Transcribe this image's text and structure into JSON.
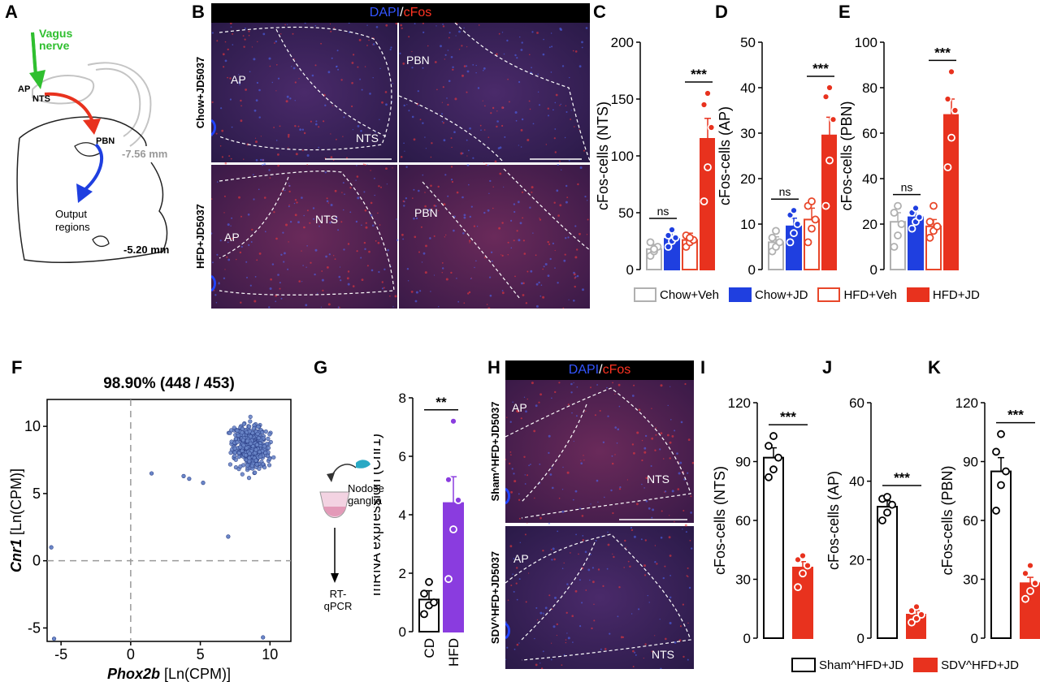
{
  "panel_labels": [
    "A",
    "B",
    "C",
    "D",
    "E",
    "F",
    "G",
    "H",
    "I",
    "J",
    "K"
  ],
  "panel_a": {
    "vagus_label": "Vagus nerve",
    "ap": "AP",
    "nts": "NTS",
    "pbn": "PBN",
    "mm1": "-7.56 mm",
    "output": "Output regions",
    "mm2": "-5.20 mm"
  },
  "panel_b": {
    "title_a": "DAPI",
    "title_sep": "/",
    "title_b": "cFos",
    "row1": "Chow+JD5037",
    "row2": "HFD+JD5037",
    "r1c1_ap": "AP",
    "r1c1_nts": "NTS",
    "r1c2_pbn": "PBN",
    "r2c1_ap": "AP",
    "r2c1_nts": "NTS",
    "r2c2_pbn": "PBN"
  },
  "panel_h": {
    "title_a": "DAPI",
    "title_sep": "/",
    "title_b": "cFos",
    "row1": "Sham^HFD+JD5037",
    "row2": "SDV^HFD+JD5037",
    "r1_ap": "AP",
    "r1_nts": "NTS",
    "r2_ap": "AP",
    "r2_nts": "NTS"
  },
  "panel_g": {
    "tissue": "Nodose ganglia",
    "method": "RT-qPCR"
  },
  "legend1": [
    {
      "label": "Chow+Veh",
      "fill": "#ffffff",
      "stroke": "#b0b0b0"
    },
    {
      "label": "Chow+JD",
      "fill": "#1f3fe0",
      "stroke": "#1f3fe0"
    },
    {
      "label": "HFD+Veh",
      "fill": "#ffffff",
      "stroke": "#e8472a"
    },
    {
      "label": "HFD+JD",
      "fill": "#e8321e",
      "stroke": "#e8321e"
    }
  ],
  "legend2": [
    {
      "label": "Sham^HFD+JD",
      "fill": "#ffffff",
      "stroke": "#000000"
    },
    {
      "label": "SDV^HFD+JD",
      "fill": "#e8321e",
      "stroke": "#e8321e"
    }
  ],
  "chart_data": [
    {
      "id": "C",
      "type": "bar",
      "ylabel": "cFos-cells (NTS)",
      "ylim": [
        0,
        200
      ],
      "yticks": [
        0,
        50,
        100,
        150,
        200
      ],
      "categories": [
        "Chow+Veh",
        "Chow+JD",
        "HFD+Veh",
        "HFD+JD"
      ],
      "values": [
        18,
        27,
        26,
        115
      ],
      "sem": [
        4,
        6,
        6,
        18
      ],
      "points": [
        [
          12,
          16,
          20,
          24,
          18
        ],
        [
          20,
          25,
          28,
          30,
          35
        ],
        [
          20,
          24,
          26,
          30,
          28
        ],
        [
          60,
          90,
          125,
          145,
          155
        ]
      ],
      "annotations": [
        {
          "text": "ns",
          "from": 0,
          "to": 1
        },
        {
          "text": "***",
          "from": 2,
          "to": 3
        }
      ]
    },
    {
      "id": "D",
      "type": "bar",
      "ylabel": "cFos-cells (AP)",
      "ylim": [
        0,
        50
      ],
      "yticks": [
        0,
        10,
        20,
        30,
        40,
        50
      ],
      "categories": [
        "Chow+Veh",
        "Chow+JD",
        "HFD+Veh",
        "HFD+JD"
      ],
      "values": [
        6,
        9.5,
        11,
        29.5
      ],
      "sem": [
        1.2,
        1.8,
        2.5,
        4
      ],
      "points": [
        [
          4,
          5,
          6,
          7,
          8.5
        ],
        [
          6,
          8,
          10,
          12,
          13
        ],
        [
          6,
          9,
          11,
          14,
          15
        ],
        [
          14,
          24,
          33,
          38,
          40
        ]
      ],
      "annotations": [
        {
          "text": "ns",
          "from": 0,
          "to": 1
        },
        {
          "text": "***",
          "from": 2,
          "to": 3
        }
      ]
    },
    {
      "id": "E",
      "type": "bar",
      "ylabel": "cFos-cells (PBN)",
      "ylim": [
        0,
        100
      ],
      "yticks": [
        0,
        20,
        40,
        60,
        80,
        100
      ],
      "categories": [
        "Chow+Veh",
        "Chow+JD",
        "HFD+Veh",
        "HFD+JD"
      ],
      "values": [
        21,
        23,
        19,
        68
      ],
      "sem": [
        4,
        3,
        3,
        7
      ],
      "points": [
        [
          10,
          15,
          20,
          25,
          28
        ],
        [
          18,
          21,
          23,
          25,
          27
        ],
        [
          14,
          17,
          19,
          21,
          28
        ],
        [
          45,
          58,
          70,
          75,
          87
        ]
      ],
      "annotations": [
        {
          "text": "ns",
          "from": 0,
          "to": 1
        },
        {
          "text": "***",
          "from": 2,
          "to": 3
        }
      ]
    },
    {
      "id": "F",
      "type": "scatter",
      "title": "98.90% (448 / 453)",
      "xlabel": "Phox2b [Ln(CPM)]",
      "ylabel": "Cnr1 [Ln(CPM)]",
      "xlim": [
        -6,
        11.5
      ],
      "ylim": [
        -6,
        12
      ],
      "xticks": [
        -5,
        0,
        5,
        10
      ],
      "yticks": [
        -5,
        0,
        5,
        10
      ],
      "outliers": [
        [
          -5.7,
          1
        ],
        [
          -5.5,
          -5.8
        ],
        [
          1.5,
          6.5
        ],
        [
          7,
          1.8
        ],
        [
          9.5,
          -5.7
        ],
        [
          4.2,
          6.1
        ],
        [
          5.2,
          5.8
        ],
        [
          3.8,
          6.3
        ]
      ],
      "cluster": {
        "n": 440,
        "center": [
          8.6,
          8.5
        ],
        "spread": [
          0.9,
          1.2
        ]
      }
    },
    {
      "id": "G",
      "type": "bar",
      "ylabel": "mRNA expression (Cnr1)",
      "ylim": [
        0,
        8
      ],
      "yticks": [
        0,
        2,
        4,
        6,
        8
      ],
      "categories": [
        "CD",
        "HFD"
      ],
      "values": [
        1.1,
        4.4
      ],
      "sem": [
        0.3,
        0.9
      ],
      "points": [
        [
          0.6,
          0.9,
          1.0,
          1.3,
          1.7
        ],
        [
          1.8,
          3.5,
          4.5,
          5.2,
          7.2
        ]
      ],
      "annotations": [
        {
          "text": "**",
          "from": 0,
          "to": 1
        }
      ]
    },
    {
      "id": "I",
      "type": "bar",
      "ylabel": "cFos-cells (NTS)",
      "ylim": [
        0,
        120
      ],
      "yticks": [
        0,
        30,
        60,
        90,
        120
      ],
      "categories": [
        "Sham^HFD+JD",
        "SDV^HFD+JD"
      ],
      "values": [
        92,
        36
      ],
      "sem": [
        5,
        3
      ],
      "points": [
        [
          82,
          86,
          92,
          98,
          103
        ],
        [
          26,
          33,
          37,
          40,
          42
        ]
      ],
      "annotations": [
        {
          "text": "***",
          "from": 0,
          "to": 1
        }
      ]
    },
    {
      "id": "J",
      "type": "bar",
      "ylabel": "cFos-cells (AP)",
      "ylim": [
        0,
        60
      ],
      "yticks": [
        0,
        20,
        40,
        60
      ],
      "categories": [
        "Sham^HFD+JD",
        "SDV^HFD+JD"
      ],
      "values": [
        33.5,
        6
      ],
      "sem": [
        1.5,
        1
      ],
      "points": [
        [
          30,
          32,
          34,
          35.5,
          36
        ],
        [
          4,
          5,
          6,
          7,
          8
        ]
      ],
      "annotations": [
        {
          "text": "***",
          "from": 0,
          "to": 1
        }
      ]
    },
    {
      "id": "K",
      "type": "bar",
      "ylabel": "cFos-cells (PBN)",
      "ylim": [
        0,
        120
      ],
      "yticks": [
        0,
        30,
        60,
        90,
        120
      ],
      "categories": [
        "Sham^HFD+JD",
        "SDV^HFD+JD"
      ],
      "values": [
        85,
        28
      ],
      "sem": [
        7,
        3
      ],
      "points": [
        [
          65,
          78,
          85,
          95,
          104
        ],
        [
          20,
          24,
          28,
          33,
          37
        ]
      ],
      "annotations": [
        {
          "text": "***",
          "from": 0,
          "to": 1
        }
      ]
    }
  ]
}
